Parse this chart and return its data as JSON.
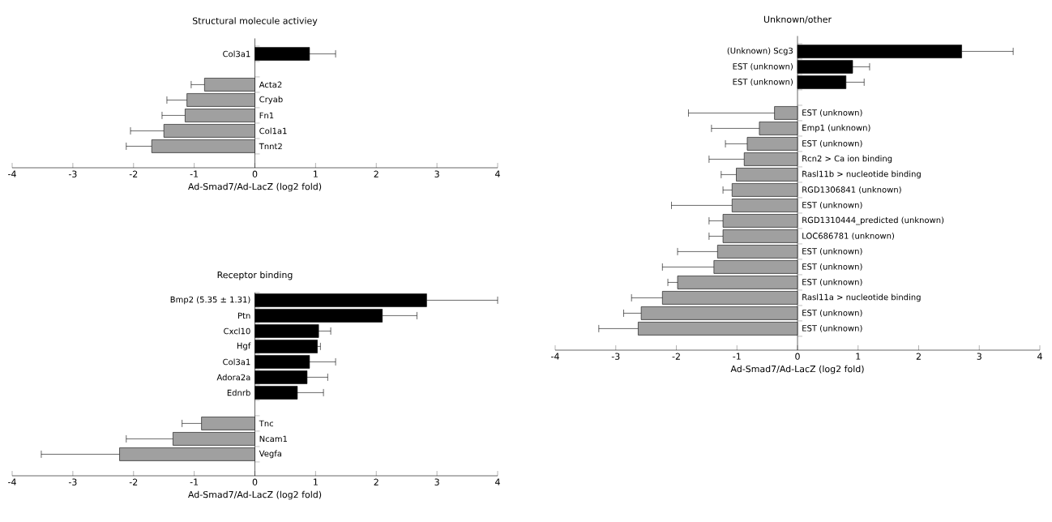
{
  "chart_data": [
    {
      "type": "bar",
      "orientation": "horizontal",
      "title": "Structural molecule activiey",
      "xlabel": "Ad-Smad7/Ad-LacZ (log2 fold)",
      "categories": [
        "Col3a1",
        null,
        "Acta2",
        "Cryab",
        "Fn1",
        "Col1a1",
        "Tnnt2"
      ],
      "values": [
        0.9,
        null,
        -0.83,
        -1.12,
        -1.15,
        -1.5,
        -1.7
      ],
      "colors": [
        "#000000",
        null,
        "#a0a0a0",
        "#a0a0a0",
        "#a0a0a0",
        "#a0a0a0",
        "#a0a0a0"
      ],
      "errors": [
        [
          0.9,
          1.33
        ],
        null,
        [
          -1.05,
          -0.83
        ],
        [
          -1.45,
          -1.12
        ],
        [
          -1.53,
          -1.15
        ],
        [
          -2.05,
          -1.5
        ],
        [
          -2.12,
          -1.7
        ]
      ],
      "xlim": [
        -4,
        4
      ],
      "xticks": [
        -4,
        -3,
        -2,
        -1,
        0,
        1,
        2,
        3,
        4
      ]
    },
    {
      "type": "bar",
      "orientation": "horizontal",
      "title": "Receptor binding",
      "xlabel": "Ad-Smad7/Ad-LacZ (log2 fold)",
      "categories": [
        "Bmp2 (5.35 ± 1.31)",
        "Ptn",
        "Cxcl10",
        "Hgf",
        "Col3a1",
        "Adora2a",
        "Ednrb",
        null,
        "Tnc",
        "Ncam1",
        "Vegfa"
      ],
      "values": [
        2.83,
        2.1,
        1.05,
        1.03,
        0.9,
        0.86,
        0.7,
        null,
        -0.88,
        -1.35,
        -2.23
      ],
      "colors": [
        "#000000",
        "#000000",
        "#000000",
        "#000000",
        "#000000",
        "#000000",
        "#000000",
        null,
        "#a0a0a0",
        "#a0a0a0",
        "#a0a0a0"
      ],
      "errors": [
        [
          2.83,
          4
        ],
        [
          2.1,
          2.67
        ],
        [
          1.05,
          1.25
        ],
        [
          1.03,
          1.08
        ],
        [
          0.9,
          1.33
        ],
        [
          0.86,
          1.2
        ],
        [
          0.7,
          1.13
        ],
        null,
        [
          -1.2,
          -0.88
        ],
        [
          -2.12,
          -1.35
        ],
        [
          -3.52,
          -2.23
        ]
      ],
      "xlim": [
        -4,
        4
      ],
      "xticks": [
        -4,
        -3,
        -2,
        -1,
        0,
        1,
        2,
        3,
        4
      ]
    },
    {
      "type": "bar",
      "orientation": "horizontal",
      "title": "Unknown/other",
      "xlabel": "Ad-Smad7/Ad-LacZ (log2 fold)",
      "categories": [
        "(Unknown) Scg3",
        "EST (unknown)",
        "EST (unknown)",
        null,
        "EST (unknown)",
        "Emp1 (unknown)",
        "EST (unknown)",
        "Rcn2 > Ca ion binding",
        "Rasl11b > nucleotide binding",
        "RGD1306841 (unknown)",
        "EST (unknown)",
        "RGD1310444_predicted (unknown)",
        "LOC686781 (unknown)",
        "EST (unknown)",
        "EST (unknown)",
        "EST (unknown)",
        "Rasl11a > nucleotide binding",
        "EST (unknown)",
        "EST (unknown)"
      ],
      "values": [
        2.71,
        0.91,
        0.8,
        null,
        -0.38,
        -0.63,
        -0.83,
        -0.88,
        -1.01,
        -1.08,
        -1.08,
        -1.23,
        -1.23,
        -1.32,
        -1.38,
        -1.98,
        -2.23,
        -2.58,
        -2.63
      ],
      "colors": [
        "#000000",
        "#000000",
        "#000000",
        null,
        "#a0a0a0",
        "#a0a0a0",
        "#a0a0a0",
        "#a0a0a0",
        "#a0a0a0",
        "#a0a0a0",
        "#a0a0a0",
        "#a0a0a0",
        "#a0a0a0",
        "#a0a0a0",
        "#a0a0a0",
        "#a0a0a0",
        "#a0a0a0",
        "#a0a0a0",
        "#a0a0a0"
      ],
      "errors": [
        [
          2.71,
          3.56
        ],
        [
          0.91,
          1.19
        ],
        [
          0.8,
          1.1
        ],
        null,
        [
          -1.8,
          -0.38
        ],
        [
          -1.42,
          -0.63
        ],
        [
          -1.19,
          -0.83
        ],
        [
          -1.46,
          -0.88
        ],
        [
          -1.26,
          -1.01
        ],
        [
          -1.23,
          -1.08
        ],
        [
          -2.08,
          -1.08
        ],
        [
          -1.46,
          -1.23
        ],
        [
          -1.46,
          -1.23
        ],
        [
          -1.98,
          -1.32
        ],
        [
          -2.23,
          -1.38
        ],
        [
          -2.14,
          -1.98
        ],
        [
          -2.74,
          -2.23
        ],
        [
          -2.87,
          -2.58
        ],
        [
          -3.28,
          -2.63
        ]
      ],
      "xlim": [
        -4,
        4
      ],
      "xticks": [
        -4,
        -3,
        -2,
        -1,
        0,
        1,
        2,
        3,
        4
      ]
    }
  ]
}
